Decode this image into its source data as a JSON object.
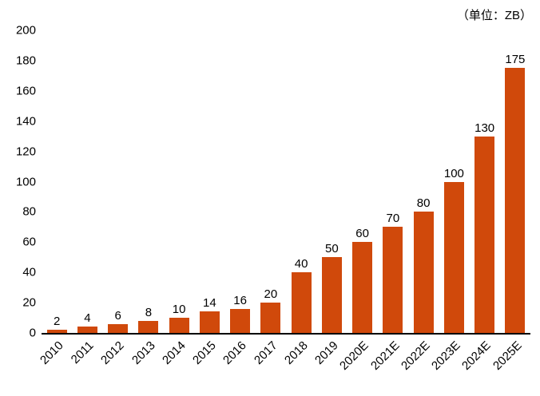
{
  "chart_data": {
    "type": "bar",
    "unit_label": "（单位：ZB）",
    "title": "",
    "xlabel": "",
    "ylabel": "",
    "categories": [
      "2010",
      "2011",
      "2012",
      "2013",
      "2014",
      "2015",
      "2016",
      "2017",
      "2018",
      "2019",
      "2020E",
      "2021E",
      "2022E",
      "2023E",
      "2024E",
      "2025E"
    ],
    "values": [
      2,
      4,
      6,
      8,
      10,
      14,
      16,
      20,
      40,
      50,
      60,
      70,
      80,
      100,
      130,
      175
    ],
    "ylim": [
      0,
      200
    ],
    "ytick_step": 20,
    "bar_color": "#D0490B",
    "text_color": "#000000",
    "grid": false,
    "legend_position": "none",
    "x_label_rotation": 45
  }
}
